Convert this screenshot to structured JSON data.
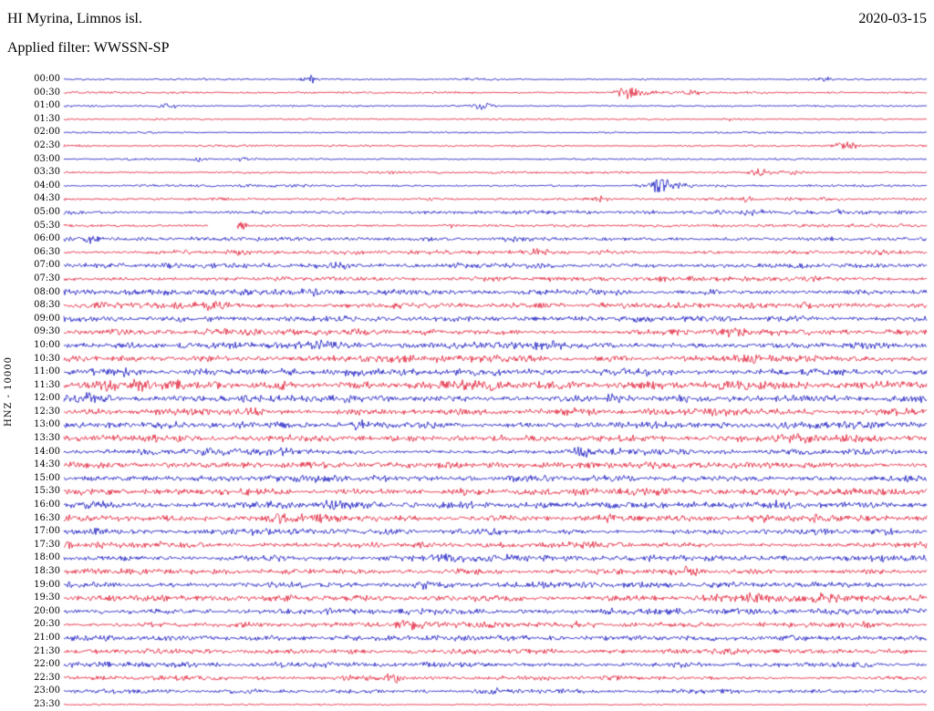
{
  "header": {
    "station_title": "HI Myrina, Limnos isl.",
    "filter_label": "Applied filter: WWSSN-SP",
    "date": "2020-03-15"
  },
  "chart_data": {
    "type": "line",
    "title": "HI Myrina, Limnos isl.",
    "subtitle": "Applied filter: WWSSN-SP",
    "date": "2020-03-15",
    "station": "HI Myrina, Limnos isl.",
    "filter": "WWSSN-SP",
    "channel": "HNZ",
    "gain": 10000,
    "ylabel": "HNZ - 10000",
    "row_interval_minutes": 30,
    "rows_count": 48,
    "grid": false,
    "legend": "none",
    "colors": {
      "blue": "#0f0fbe",
      "red": "#e0142e"
    },
    "rows": [
      {
        "label": "00:00",
        "color": "blue",
        "amp": 0.55,
        "events": [
          {
            "p": 0.285,
            "a": 2.2,
            "w": 6
          },
          {
            "p": 0.88,
            "a": 1.2,
            "w": 8
          }
        ]
      },
      {
        "label": "00:30",
        "color": "red",
        "amp": 0.55,
        "events": [
          {
            "p": 0.653,
            "a": 3.2,
            "w": 5
          },
          {
            "p": 0.662,
            "a": 2.0,
            "w": 14
          },
          {
            "p": 0.725,
            "a": 1.6,
            "w": 8
          }
        ]
      },
      {
        "label": "01:00",
        "color": "blue",
        "amp": 0.55,
        "events": [
          {
            "p": 0.12,
            "a": 1.4,
            "w": 7
          },
          {
            "p": 0.487,
            "a": 2.2,
            "w": 7
          }
        ]
      },
      {
        "label": "01:30",
        "color": "red",
        "amp": 0.5,
        "events": [
          {
            "p": 0.77,
            "a": 1.0,
            "w": 8
          }
        ]
      },
      {
        "label": "02:00",
        "color": "blue",
        "amp": 0.5,
        "events": []
      },
      {
        "label": "02:30",
        "color": "red",
        "amp": 0.6,
        "events": [
          {
            "p": 0.905,
            "a": 2.8,
            "w": 9
          }
        ]
      },
      {
        "label": "03:00",
        "color": "blue",
        "amp": 0.6,
        "events": [
          {
            "p": 0.155,
            "a": 1.8,
            "w": 6
          },
          {
            "p": 0.21,
            "a": 1.4,
            "w": 7
          }
        ]
      },
      {
        "label": "03:30",
        "color": "red",
        "amp": 0.7,
        "events": [
          {
            "p": 0.807,
            "a": 2.6,
            "w": 8
          },
          {
            "p": 0.845,
            "a": 1.4,
            "w": 10
          }
        ]
      },
      {
        "label": "04:00",
        "color": "blue",
        "amp": 0.7,
        "events": [
          {
            "p": 0.69,
            "a": 4.5,
            "w": 6
          },
          {
            "p": 0.7,
            "a": 2.5,
            "w": 14
          }
        ]
      },
      {
        "label": "04:30",
        "color": "red",
        "amp": 0.8,
        "events": [
          {
            "p": 0.62,
            "a": 1.2,
            "w": 8
          },
          {
            "p": 0.79,
            "a": 1.2,
            "w": 8
          }
        ]
      },
      {
        "label": "05:00",
        "color": "blue",
        "amp": 1.0,
        "events": [
          {
            "p": 0.8,
            "a": 1.2,
            "w": 9
          },
          {
            "p": 0.9,
            "a": 1.0,
            "w": 9
          }
        ]
      },
      {
        "label": "05:30",
        "color": "red",
        "amp": 0.8,
        "gap": [
          0.168,
          0.2
        ],
        "events": [
          {
            "p": 0.205,
            "a": 2.0,
            "w": 4
          },
          {
            "p": 0.45,
            "a": 1.0,
            "w": 9
          }
        ]
      },
      {
        "label": "06:00",
        "color": "blue",
        "amp": 1.1,
        "events": [
          {
            "p": 0.033,
            "a": 2.0,
            "w": 6
          },
          {
            "p": 0.52,
            "a": 1.0,
            "w": 9
          }
        ]
      },
      {
        "label": "06:30",
        "color": "red",
        "amp": 1.1,
        "events": [
          {
            "p": 0.2,
            "a": 1.0,
            "w": 9
          },
          {
            "p": 0.55,
            "a": 1.8,
            "w": 8
          },
          {
            "p": 0.95,
            "a": 1.2,
            "w": 8
          }
        ]
      },
      {
        "label": "07:00",
        "color": "blue",
        "amp": 1.4,
        "events": [
          {
            "p": 0.32,
            "a": 1.4,
            "w": 8
          }
        ]
      },
      {
        "label": "07:30",
        "color": "red",
        "amp": 1.4,
        "events": [
          {
            "p": 0.25,
            "a": 1.2,
            "w": 8
          },
          {
            "p": 0.56,
            "a": 1.2,
            "w": 9
          }
        ]
      },
      {
        "label": "08:00",
        "color": "blue",
        "amp": 1.5,
        "events": [
          {
            "p": 0.285,
            "a": 1.4,
            "w": 8
          },
          {
            "p": 0.75,
            "a": 1.0,
            "w": 9
          }
        ]
      },
      {
        "label": "08:30",
        "color": "red",
        "amp": 1.6,
        "events": [
          {
            "p": 0.17,
            "a": 1.3,
            "w": 9
          },
          {
            "p": 0.86,
            "a": 1.3,
            "w": 9
          }
        ]
      },
      {
        "label": "09:00",
        "color": "blue",
        "amp": 1.7,
        "events": [
          {
            "p": 0.13,
            "a": 1.2,
            "w": 9
          },
          {
            "p": 0.67,
            "a": 1.0,
            "w": 9
          }
        ]
      },
      {
        "label": "09:30",
        "color": "red",
        "amp": 1.7,
        "events": [
          {
            "p": 0.77,
            "a": 1.5,
            "w": 9
          }
        ]
      },
      {
        "label": "10:00",
        "color": "blue",
        "amp": 1.8,
        "events": [
          {
            "p": 0.3,
            "a": 1.2,
            "w": 9
          },
          {
            "p": 0.55,
            "a": 1.0,
            "w": 9
          }
        ]
      },
      {
        "label": "10:30",
        "color": "red",
        "amp": 1.8,
        "events": [
          {
            "p": 0.54,
            "a": 1.5,
            "w": 9
          },
          {
            "p": 0.8,
            "a": 1.2,
            "w": 9
          }
        ]
      },
      {
        "label": "11:00",
        "color": "blue",
        "amp": 2.0,
        "events": [
          {
            "p": 0.07,
            "a": 1.2,
            "w": 9
          },
          {
            "p": 0.4,
            "a": 1.0,
            "w": 9
          }
        ]
      },
      {
        "label": "11:30",
        "color": "red",
        "amp": 2.2,
        "events": [
          {
            "p": 0.05,
            "a": 1.8,
            "w": 8
          },
          {
            "p": 0.09,
            "a": 1.5,
            "w": 8
          },
          {
            "p": 0.13,
            "a": 1.2,
            "w": 9
          }
        ]
      },
      {
        "label": "12:00",
        "color": "blue",
        "amp": 2.1,
        "events": [
          {
            "p": 0.025,
            "a": 1.8,
            "w": 8
          },
          {
            "p": 0.78,
            "a": 1.4,
            "w": 9
          }
        ]
      },
      {
        "label": "12:30",
        "color": "red",
        "amp": 1.9,
        "events": [
          {
            "p": 0.22,
            "a": 1.2,
            "w": 9
          },
          {
            "p": 0.6,
            "a": 1.0,
            "w": 9
          }
        ]
      },
      {
        "label": "13:00",
        "color": "blue",
        "amp": 1.8,
        "events": [
          {
            "p": 0.21,
            "a": 1.3,
            "w": 9
          },
          {
            "p": 0.35,
            "a": 1.2,
            "w": 9
          }
        ]
      },
      {
        "label": "13:30",
        "color": "red",
        "amp": 1.8,
        "events": [
          {
            "p": 0.85,
            "a": 1.2,
            "w": 9
          }
        ]
      },
      {
        "label": "14:00",
        "color": "blue",
        "amp": 1.8,
        "events": [
          {
            "p": 0.6,
            "a": 1.7,
            "w": 8
          }
        ]
      },
      {
        "label": "14:30",
        "color": "red",
        "amp": 1.8,
        "events": [
          {
            "p": 0.27,
            "a": 1.1,
            "w": 9
          }
        ]
      },
      {
        "label": "15:00",
        "color": "blue",
        "amp": 1.9,
        "events": [
          {
            "p": 0.37,
            "a": 1.2,
            "w": 9
          },
          {
            "p": 0.52,
            "a": 1.1,
            "w": 9
          }
        ]
      },
      {
        "label": "15:30",
        "color": "red",
        "amp": 1.8,
        "events": [
          {
            "p": 0.33,
            "a": 1.1,
            "w": 9
          }
        ]
      },
      {
        "label": "16:00",
        "color": "blue",
        "amp": 1.9,
        "events": [
          {
            "p": 0.31,
            "a": 1.3,
            "w": 9
          },
          {
            "p": 0.83,
            "a": 1.2,
            "w": 9
          }
        ]
      },
      {
        "label": "16:30",
        "color": "red",
        "amp": 1.9,
        "events": [
          {
            "p": 0.25,
            "a": 1.2,
            "w": 9
          },
          {
            "p": 0.88,
            "a": 1.1,
            "w": 9
          }
        ]
      },
      {
        "label": "17:00",
        "color": "blue",
        "amp": 1.8,
        "events": [
          {
            "p": 0.95,
            "a": 1.3,
            "w": 9
          }
        ]
      },
      {
        "label": "17:30",
        "color": "red",
        "amp": 1.7,
        "events": [
          {
            "p": 0.6,
            "a": 1.0,
            "w": 9
          }
        ]
      },
      {
        "label": "18:00",
        "color": "blue",
        "amp": 1.8,
        "events": [
          {
            "p": 0.44,
            "a": 1.1,
            "w": 9
          }
        ]
      },
      {
        "label": "18:30",
        "color": "red",
        "amp": 1.7,
        "events": [
          {
            "p": 0.72,
            "a": 1.1,
            "w": 9
          }
        ]
      },
      {
        "label": "19:00",
        "color": "blue",
        "amp": 1.8,
        "events": [
          {
            "p": 0.42,
            "a": 1.2,
            "w": 9
          }
        ]
      },
      {
        "label": "19:30",
        "color": "red",
        "amp": 1.8,
        "events": [
          {
            "p": 0.8,
            "a": 1.5,
            "w": 9
          },
          {
            "p": 0.88,
            "a": 1.3,
            "w": 9
          }
        ]
      },
      {
        "label": "20:00",
        "color": "blue",
        "amp": 1.7,
        "events": [
          {
            "p": 0.63,
            "a": 1.3,
            "w": 9
          }
        ]
      },
      {
        "label": "20:30",
        "color": "red",
        "amp": 1.6,
        "events": [
          {
            "p": 0.4,
            "a": 1.7,
            "w": 8
          }
        ]
      },
      {
        "label": "21:00",
        "color": "blue",
        "amp": 1.6,
        "events": [
          {
            "p": 0.62,
            "a": 1.0,
            "w": 9
          }
        ]
      },
      {
        "label": "21:30",
        "color": "red",
        "amp": 1.5,
        "events": [
          {
            "p": 0.77,
            "a": 1.0,
            "w": 9
          }
        ]
      },
      {
        "label": "22:00",
        "color": "blue",
        "amp": 1.4,
        "events": [
          {
            "p": 0.3,
            "a": 1.1,
            "w": 9
          }
        ]
      },
      {
        "label": "22:30",
        "color": "red",
        "amp": 1.3,
        "events": [
          {
            "p": 0.385,
            "a": 2.6,
            "w": 7
          }
        ]
      },
      {
        "label": "23:00",
        "color": "blue",
        "amp": 1.2,
        "events": [
          {
            "p": 0.5,
            "a": 0.9,
            "w": 9
          }
        ]
      },
      {
        "label": "23:30",
        "color": "red",
        "amp": 0.45,
        "events": []
      }
    ]
  }
}
